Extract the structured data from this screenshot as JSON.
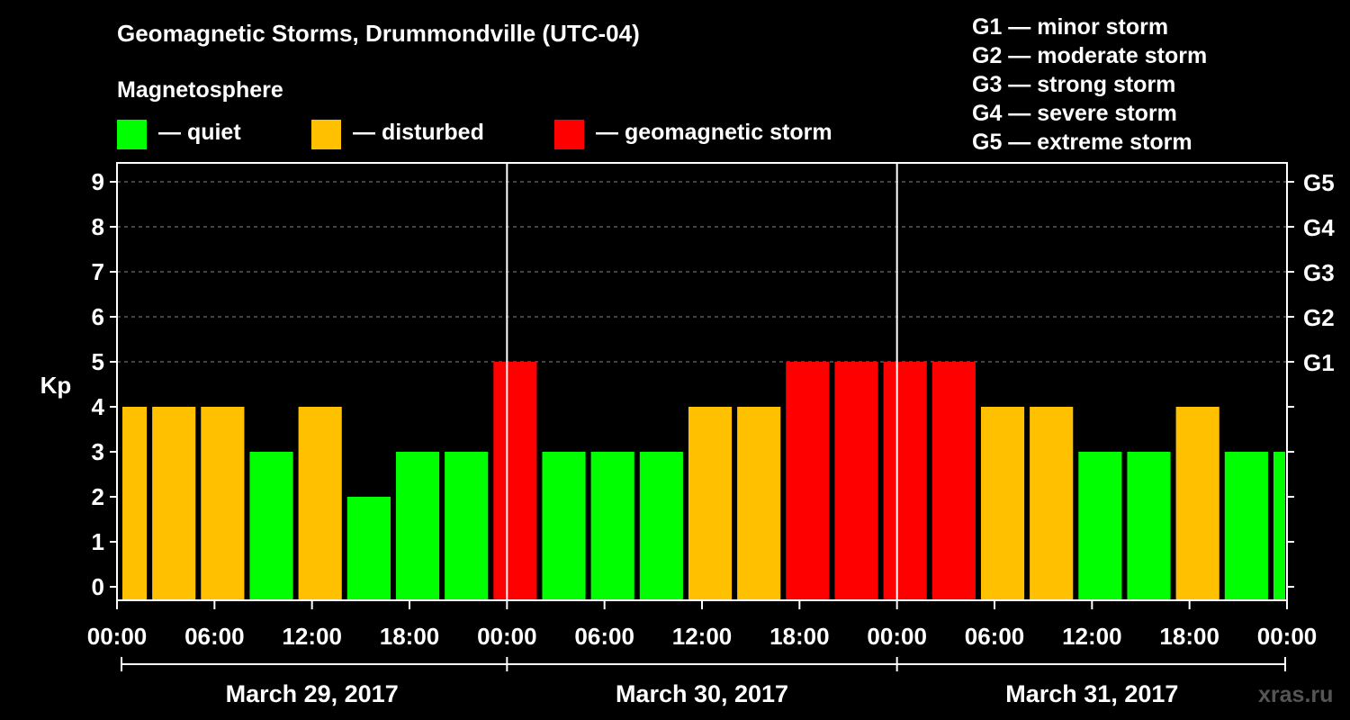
{
  "title": "Geomagnetic Storms, Drummondville (UTC-04)",
  "subtitle": "Magnetosphere",
  "legend": [
    {
      "label": "— quiet",
      "color": "#00ff00"
    },
    {
      "label": "— disturbed",
      "color": "#ffc000"
    },
    {
      "label": "— geomagnetic storm",
      "color": "#ff0000"
    }
  ],
  "storm_levels": [
    "G1 — minor storm",
    "G2 — moderate storm",
    "G3 — strong storm",
    "G4 — severe storm",
    "G5 — extreme storm"
  ],
  "watermark": "xras.ru",
  "chart_data": {
    "type": "bar",
    "title": "Geomagnetic Storms, Drummondville (UTC-04)",
    "ylabel": "Kp",
    "ylim": [
      0,
      9
    ],
    "yticks": [
      0,
      1,
      2,
      3,
      4,
      5,
      6,
      7,
      8,
      9
    ],
    "right_axis_labels": [
      {
        "kp": 5,
        "label": "G1"
      },
      {
        "kp": 6,
        "label": "G2"
      },
      {
        "kp": 7,
        "label": "G3"
      },
      {
        "kp": 8,
        "label": "G4"
      },
      {
        "kp": 9,
        "label": "G5"
      }
    ],
    "x_range_hours": [
      0,
      72
    ],
    "xtick_labels": [
      "00:00",
      "06:00",
      "12:00",
      "18:00",
      "00:00",
      "06:00",
      "12:00",
      "18:00",
      "00:00",
      "06:00",
      "12:00",
      "18:00",
      "00:00"
    ],
    "dates": [
      "March 29, 2017",
      "March 30, 2017",
      "March 31, 2017"
    ],
    "grid": "horizontal dashed",
    "colors": {
      "quiet": "#00ff00",
      "disturbed": "#ffc000",
      "storm": "#ff0000"
    },
    "bars": [
      {
        "start_hour": 0,
        "end_hour": 2,
        "kp": 4
      },
      {
        "start_hour": 2,
        "end_hour": 5,
        "kp": 4
      },
      {
        "start_hour": 5,
        "end_hour": 8,
        "kp": 4
      },
      {
        "start_hour": 8,
        "end_hour": 11,
        "kp": 3
      },
      {
        "start_hour": 11,
        "end_hour": 14,
        "kp": 4
      },
      {
        "start_hour": 14,
        "end_hour": 17,
        "kp": 2
      },
      {
        "start_hour": 17,
        "end_hour": 20,
        "kp": 3
      },
      {
        "start_hour": 20,
        "end_hour": 23,
        "kp": 3
      },
      {
        "start_hour": 23,
        "end_hour": 26,
        "kp": 5
      },
      {
        "start_hour": 26,
        "end_hour": 29,
        "kp": 3
      },
      {
        "start_hour": 29,
        "end_hour": 32,
        "kp": 3
      },
      {
        "start_hour": 32,
        "end_hour": 35,
        "kp": 3
      },
      {
        "start_hour": 35,
        "end_hour": 38,
        "kp": 4
      },
      {
        "start_hour": 38,
        "end_hour": 41,
        "kp": 4
      },
      {
        "start_hour": 41,
        "end_hour": 44,
        "kp": 5
      },
      {
        "start_hour": 44,
        "end_hour": 47,
        "kp": 5
      },
      {
        "start_hour": 47,
        "end_hour": 50,
        "kp": 5
      },
      {
        "start_hour": 50,
        "end_hour": 53,
        "kp": 5
      },
      {
        "start_hour": 53,
        "end_hour": 56,
        "kp": 4
      },
      {
        "start_hour": 56,
        "end_hour": 59,
        "kp": 4
      },
      {
        "start_hour": 59,
        "end_hour": 62,
        "kp": 3
      },
      {
        "start_hour": 62,
        "end_hour": 65,
        "kp": 3
      },
      {
        "start_hour": 65,
        "end_hour": 68,
        "kp": 4
      },
      {
        "start_hour": 68,
        "end_hour": 71,
        "kp": 3
      },
      {
        "start_hour": 71,
        "end_hour": 72,
        "kp": 3
      }
    ]
  }
}
